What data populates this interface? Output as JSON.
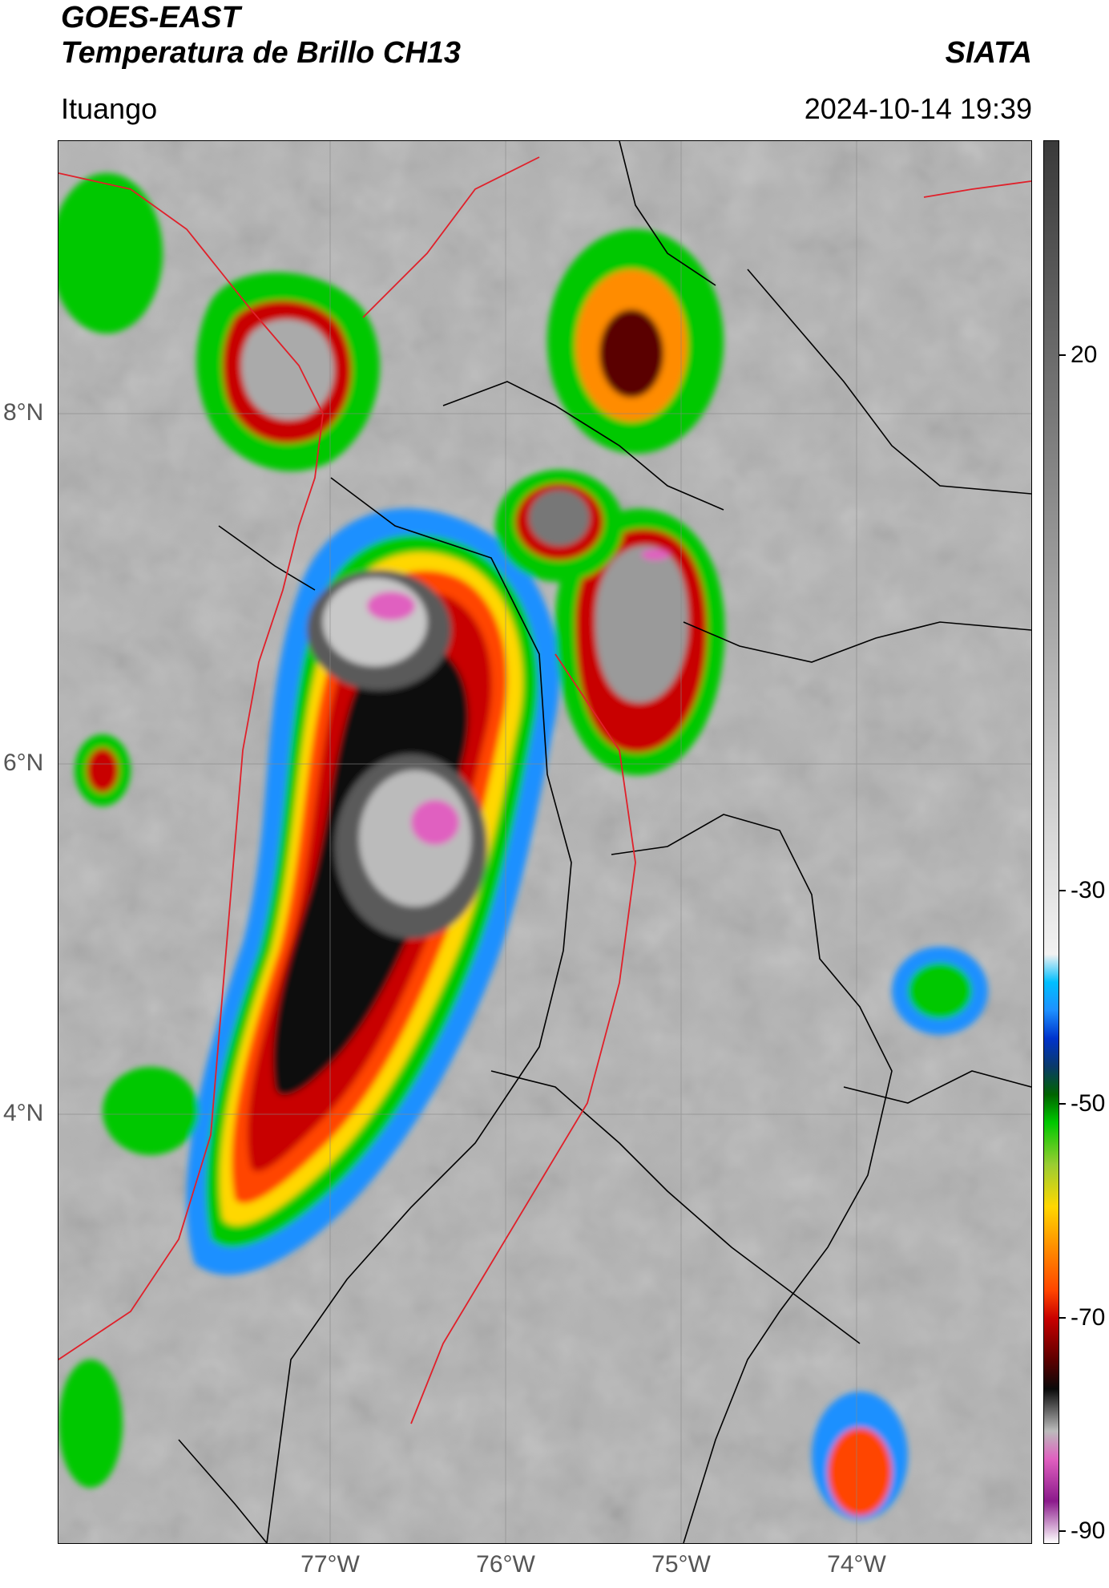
{
  "header": {
    "line1": "GOES-EAST",
    "line2": "Temperatura de Brillo CH13",
    "organization": "SIATA",
    "location": "Ituango",
    "timestamp": "2024-10-14 19:39"
  },
  "map": {
    "lat_ticks": [
      {
        "label": "8°N",
        "value": 8
      },
      {
        "label": "6°N",
        "value": 6
      },
      {
        "label": "4°N",
        "value": 4
      }
    ],
    "lon_ticks": [
      {
        "label": "77°W",
        "value": -77
      },
      {
        "label": "76°W",
        "value": -76
      },
      {
        "label": "75°W",
        "value": -75
      },
      {
        "label": "74°W",
        "value": -74
      }
    ],
    "colors": {
      "background_gray": "#b5b5b5",
      "border_black": "#000000",
      "border_red": "#e0202a"
    }
  },
  "colorbar": {
    "ticks": [
      {
        "label": "20",
        "value": 20
      },
      {
        "label": "-30",
        "value": -30
      },
      {
        "label": "-50",
        "value": -50
      },
      {
        "label": "-70",
        "value": -70
      },
      {
        "label": "-90",
        "value": -90
      }
    ],
    "colors": [
      "#ffffff",
      "#8b1a8b",
      "#e060c0",
      "#bbbbbb",
      "#444444",
      "#0a0a0a",
      "#5a0000",
      "#c80000",
      "#ff4500",
      "#ff8c00",
      "#ffd700",
      "#9acd32",
      "#00c800",
      "#006400",
      "#0a3a6a",
      "#0033cc",
      "#1e90ff",
      "#00bfff",
      "#f2f2f2",
      "#9a9a9a",
      "#3a3a3a"
    ]
  }
}
